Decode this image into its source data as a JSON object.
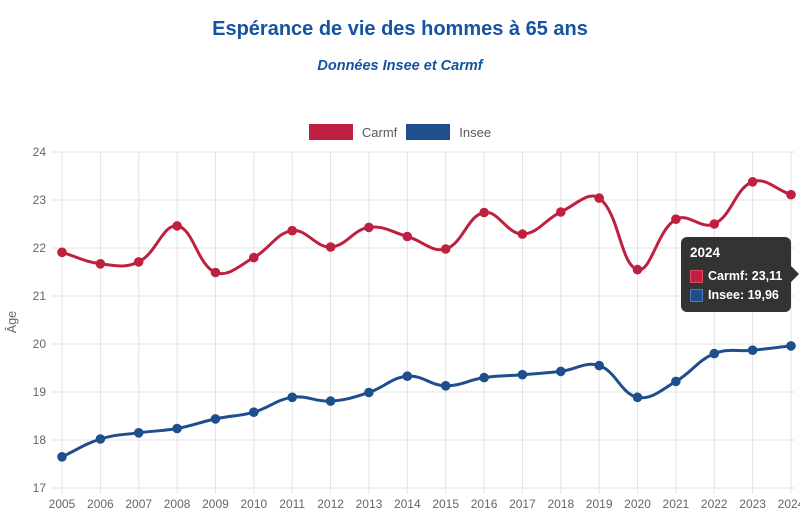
{
  "header": {
    "title": "Espérance de vie des hommes à 65 ans",
    "subtitle": "Données Insee et Carmf"
  },
  "colors": {
    "title_blue": "#1554a1",
    "carmf_red": "#c02040",
    "insee_blue": "#1f4e8c",
    "carmf_red_light": "#de4a66",
    "insee_blue_light": "#4d7cba",
    "grid_gray": "#e3e3e3",
    "axis_text_gray": "#666666"
  },
  "legend": {
    "items": [
      {
        "label": "Carmf",
        "color": "#c02040"
      },
      {
        "label": "Insee",
        "color": "#1f4e8c"
      }
    ]
  },
  "tooltip": {
    "title": "2024",
    "rows": [
      {
        "text": "Carmf: 23,11",
        "color": "#c02040",
        "border": "#de4a66"
      },
      {
        "text": "Insee: 19,96",
        "color": "#1f4e8c",
        "border": "#4d7cba"
      }
    ]
  },
  "chart_data": {
    "type": "line",
    "title": "Espérance de vie des hommes à 65 ans",
    "subtitle": "Données Insee et Carmf",
    "xlabel": "",
    "ylabel": "Âge",
    "ylim": [
      17,
      24
    ],
    "yticks": [
      17,
      18,
      19,
      20,
      21,
      22,
      23,
      24
    ],
    "grid": true,
    "legend_position": "top",
    "x": [
      2005,
      2006,
      2007,
      2008,
      2009,
      2010,
      2011,
      2012,
      2013,
      2014,
      2015,
      2016,
      2017,
      2018,
      2019,
      2020,
      2021,
      2022,
      2023,
      2024
    ],
    "series": [
      {
        "name": "Carmf",
        "color": "#c02040",
        "values": [
          21.91,
          21.67,
          21.71,
          22.46,
          21.49,
          21.8,
          22.36,
          22.02,
          22.43,
          22.24,
          21.98,
          22.74,
          22.29,
          22.75,
          23.04,
          21.55,
          22.6,
          22.5,
          23.38,
          23.11
        ]
      },
      {
        "name": "Insee",
        "color": "#1f4e8c",
        "values": [
          17.65,
          18.02,
          18.15,
          18.24,
          18.44,
          18.58,
          18.89,
          18.81,
          18.99,
          19.33,
          19.13,
          19.3,
          19.36,
          19.43,
          19.55,
          18.89,
          19.22,
          19.8,
          19.87,
          19.96
        ]
      }
    ]
  }
}
